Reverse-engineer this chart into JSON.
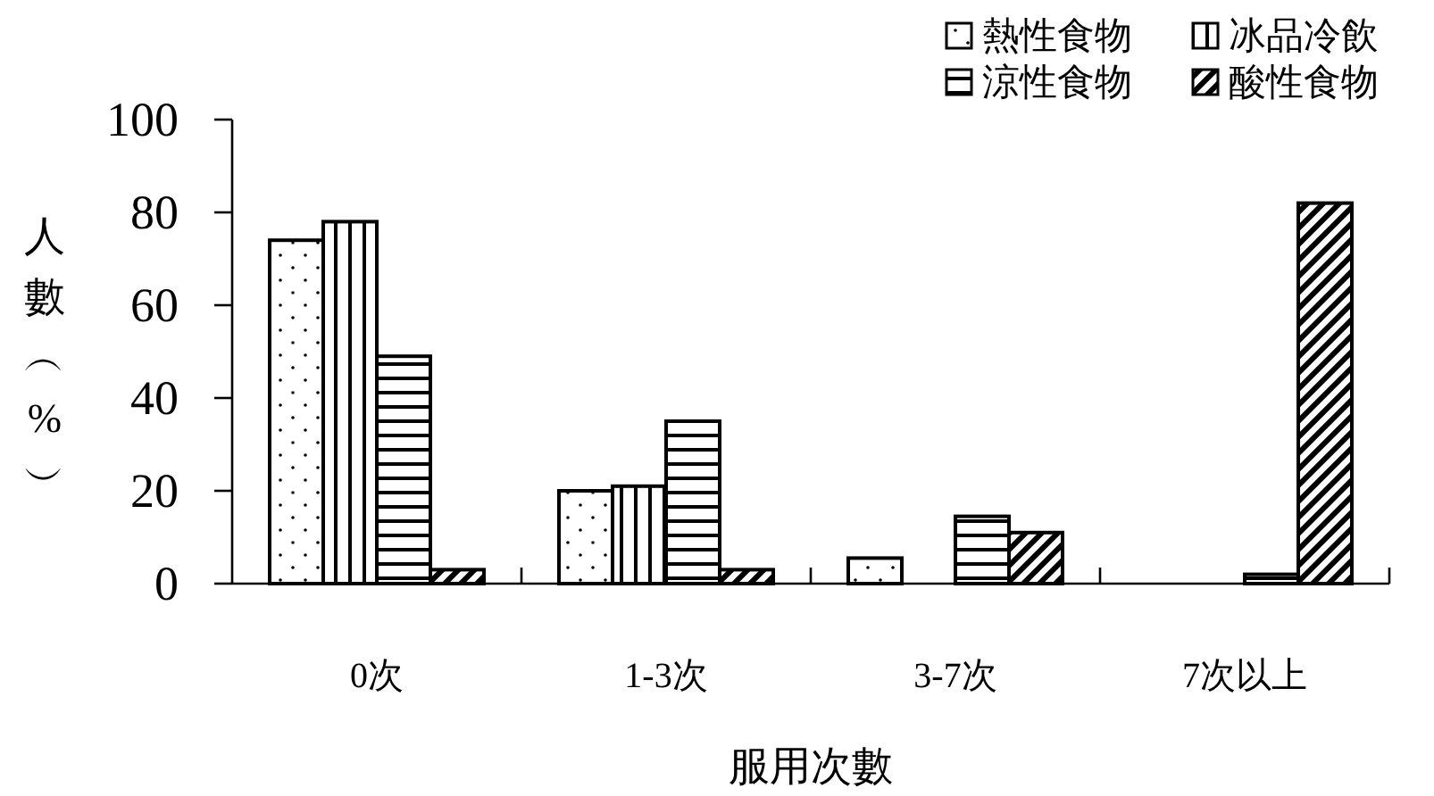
{
  "chart_data": {
    "type": "bar",
    "xlabel": "服用次數",
    "ylabel": "人數︵%︶",
    "categories": [
      "0次",
      "1-3次",
      "3-7次",
      "7次以上"
    ],
    "series": [
      {
        "name": "熱性食物",
        "color": "#000000",
        "values": [
          74,
          20,
          5.5,
          0
        ]
      },
      {
        "name": "冰品冷飲",
        "color": "#000000",
        "values": [
          78,
          21,
          0,
          0
        ]
      },
      {
        "name": "涼性食物",
        "color": "#000000",
        "values": [
          49,
          35,
          14.5,
          2
        ]
      },
      {
        "name": "酸性食物",
        "color": "#000000",
        "values": [
          3,
          3,
          11,
          82
        ]
      }
    ],
    "ylim": [
      0,
      100
    ],
    "yticks": [
      0,
      20,
      40,
      60,
      80,
      100
    ],
    "grid": false,
    "legend": "top right"
  }
}
